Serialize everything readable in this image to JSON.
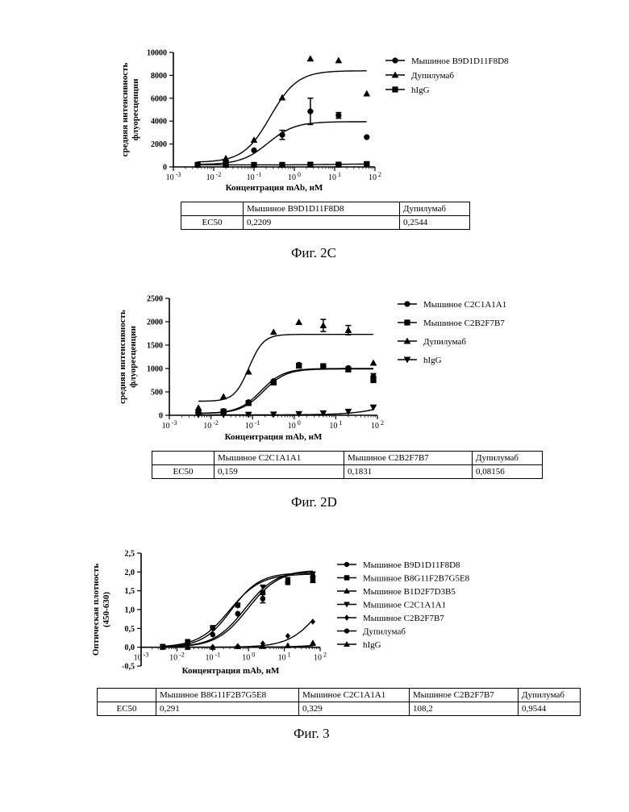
{
  "chart_data": [
    {
      "id": "fig2c",
      "type": "scatter",
      "caption": "Фиг. 2C",
      "xlabel": "Концентрация mAb, нМ",
      "ylabel": [
        "средняя интенсивность",
        "флуоресценции"
      ],
      "xscale": "log",
      "xlim": [
        -3,
        2
      ],
      "ylim": [
        0,
        10000
      ],
      "yticks": [
        "0",
        "2000",
        "4000",
        "6000",
        "8000",
        "10000"
      ],
      "ytick_values": [
        0,
        2000,
        4000,
        6000,
        8000,
        10000
      ],
      "legend_position": "top-right",
      "series": [
        {
          "name": "Мышиное B9D1D11F8D8",
          "marker": "circle",
          "x": [
            0.004,
            0.02,
            0.1,
            0.5,
            2.5,
            12.5,
            62.5
          ],
          "y": [
            200,
            400,
            1450,
            2800,
            4850,
            4500,
            2600
          ],
          "err": [
            0,
            0,
            0,
            400,
            1150,
            250,
            0
          ],
          "fit": {
            "bottom": 200,
            "top": 3950,
            "ec50": 0.2209,
            "hill": 1.3
          }
        },
        {
          "name": "Дупилумаб",
          "marker": "triangle",
          "x": [
            0.004,
            0.02,
            0.1,
            0.5,
            2.5,
            12.5,
            62.5
          ],
          "y": [
            200,
            750,
            2350,
            6050,
            9450,
            9300,
            6400
          ],
          "err": [
            0,
            0,
            0,
            0,
            0,
            0,
            0
          ],
          "fit": {
            "bottom": 400,
            "top": 8400,
            "ec50": 0.2544,
            "hill": 1.3
          }
        },
        {
          "name": "hIgG",
          "marker": "square",
          "x": [
            0.004,
            0.02,
            0.1,
            0.5,
            2.5,
            12.5,
            62.5
          ],
          "y": [
            180,
            180,
            180,
            180,
            200,
            200,
            250
          ],
          "err": [
            0,
            0,
            0,
            0,
            0,
            0,
            0
          ],
          "fit": {
            "bottom": 180,
            "top": 260,
            "ec50": 10,
            "hill": 1
          }
        }
      ],
      "table": {
        "header": [
          "",
          "Мышиное B9D1D11F8D8",
          "Дупилумаб"
        ],
        "rows": [
          [
            "EC50",
            "0,2209",
            "0,2544"
          ]
        ]
      }
    },
    {
      "id": "fig2d",
      "type": "scatter",
      "caption": "Фиг. 2D",
      "xlabel": "Концентрация mAb, нМ",
      "ylabel": [
        "средняя интенсивность",
        "флуоресценции"
      ],
      "xscale": "log",
      "xlim": [
        -3,
        2
      ],
      "ylim": [
        0,
        2500
      ],
      "yticks": [
        "0",
        "500",
        "1000",
        "1500",
        "2000",
        "2500"
      ],
      "ytick_values": [
        0,
        500,
        1000,
        1500,
        2000,
        2500
      ],
      "legend_position": "top-right",
      "series": [
        {
          "name": "Мышиное C2C1A1A1",
          "marker": "circle",
          "x": [
            0.005,
            0.02,
            0.08,
            0.32,
            1.3,
            5,
            20,
            80
          ],
          "y": [
            60,
            90,
            280,
            730,
            1080,
            1050,
            1010,
            830
          ],
          "err": [
            0,
            0,
            0,
            0,
            0,
            0,
            0,
            60
          ],
          "fit": {
            "bottom": 40,
            "top": 1000,
            "ec50": 0.159,
            "hill": 1.6
          }
        },
        {
          "name": "Мышиное C2B2F7B7",
          "marker": "square",
          "x": [
            0.005,
            0.02,
            0.08,
            0.32,
            1.3,
            5,
            20,
            80
          ],
          "y": [
            60,
            80,
            260,
            700,
            1060,
            1050,
            980,
            760
          ],
          "err": [
            0,
            0,
            0,
            0,
            0,
            0,
            0,
            60
          ],
          "fit": {
            "bottom": 40,
            "top": 990,
            "ec50": 0.1831,
            "hill": 1.6
          }
        },
        {
          "name": "Дупилумаб",
          "marker": "triangle",
          "x": [
            0.005,
            0.02,
            0.08,
            0.32,
            1.3,
            5,
            20,
            80
          ],
          "y": [
            160,
            400,
            930,
            1780,
            1990,
            1920,
            1820,
            1120
          ],
          "err": [
            0,
            0,
            0,
            0,
            0,
            130,
            100,
            0
          ],
          "fit": {
            "bottom": 300,
            "top": 1730,
            "ec50": 0.08156,
            "hill": 2.5
          }
        },
        {
          "name": "hIgG",
          "marker": "triangle-down",
          "x": [
            0.005,
            0.02,
            0.08,
            0.32,
            1.3,
            5,
            20,
            80
          ],
          "y": [
            10,
            10,
            15,
            20,
            30,
            45,
            80,
            170
          ],
          "err": [
            0,
            0,
            0,
            0,
            0,
            0,
            0,
            0
          ],
          "fit": {
            "bottom": 10,
            "top": 400,
            "ec50": 200,
            "hill": 1
          }
        }
      ],
      "table": {
        "header": [
          "",
          "Мышиное C2C1A1A1",
          "Мышиное C2B2F7B7",
          "Дупилумаб"
        ],
        "rows": [
          [
            "EC50",
            "0,159",
            "0,1831",
            "0,08156"
          ]
        ]
      }
    },
    {
      "id": "fig3",
      "type": "scatter",
      "caption": "Фиг. 3",
      "xlabel": "Концентрация mAb,  нМ",
      "ylabel": [
        "Оптическая плотность",
        "(450-630)"
      ],
      "xscale": "log",
      "xlim": [
        -3,
        2
      ],
      "ylim": [
        -0.5,
        2.5
      ],
      "yticks": [
        "-0,5",
        "0,0",
        "0,5",
        "1,0",
        "1,5",
        "2,0",
        "2,5"
      ],
      "ytick_values": [
        -0.5,
        0,
        0.5,
        1.0,
        1.5,
        2.0,
        2.5
      ],
      "legend_position": "top-right",
      "series": [
        {
          "name": "Мышиное B9D1D11F8D8",
          "marker": "circle",
          "x": [
            0.004,
            0.02,
            0.1,
            0.5,
            2.5,
            12.5,
            62.5
          ],
          "y": [
            0.02,
            0.1,
            0.33,
            0.88,
            1.3,
            1.78,
            1.85
          ],
          "err": [
            0,
            0,
            0,
            0,
            0.12,
            0,
            0
          ],
          "fit": {
            "bottom": 0,
            "top": 2.05,
            "ec50": 0.8,
            "hill": 1
          }
        },
        {
          "name": "Мышиное B8G11F2B7G5E8",
          "marker": "square",
          "x": [
            0.004,
            0.02,
            0.1,
            0.5,
            2.5,
            12.5,
            62.5
          ],
          "y": [
            0.02,
            0.15,
            0.52,
            1.12,
            1.45,
            1.72,
            1.8
          ],
          "err": [
            0,
            0,
            0,
            0,
            0,
            0,
            0.08
          ],
          "fit": {
            "bottom": 0,
            "top": 1.95,
            "ec50": 0.291,
            "hill": 1
          }
        },
        {
          "name": "Мышиное B1D2F7D3B5",
          "marker": "triangle",
          "x": [
            0.004,
            0.02,
            0.1,
            0.5,
            2.5,
            12.5,
            62.5
          ],
          "y": [
            0,
            0,
            0,
            0.02,
            0.03,
            0.05,
            0.1
          ],
          "err": [
            0,
            0,
            0,
            0,
            0,
            0,
            0
          ],
          "fit": {
            "bottom": 0,
            "top": 0.3,
            "ec50": 300,
            "hill": 1
          }
        },
        {
          "name": "Мышиное C2C1A1A1",
          "marker": "triangle-down",
          "x": [
            0.004,
            0.02,
            0.1,
            0.5,
            2.5,
            12.5,
            62.5
          ],
          "y": [
            0.01,
            0.12,
            0.5,
            1.1,
            1.6,
            1.8,
            1.95
          ],
          "err": [
            0,
            0,
            0,
            0,
            0,
            0,
            0
          ],
          "fit": {
            "bottom": 0,
            "top": 1.98,
            "ec50": 0.329,
            "hill": 1.1
          }
        },
        {
          "name": "Мышиное C2B2F7B7",
          "marker": "diamond",
          "x": [
            0.004,
            0.02,
            0.1,
            0.5,
            2.5,
            12.5,
            62.5
          ],
          "y": [
            0,
            0,
            0.01,
            0.03,
            0.1,
            0.3,
            0.68
          ],
          "err": [
            0,
            0,
            0,
            0,
            0,
            0,
            0
          ],
          "fit": {
            "bottom": 0,
            "top": 2.0,
            "ec50": 108.2,
            "hill": 1
          }
        },
        {
          "name": "Дупилумаб",
          "marker": "circle",
          "x": [
            0.004,
            0.02,
            0.1,
            0.5,
            2.5,
            12.5,
            62.5
          ],
          "y": [
            0.02,
            0.12,
            0.34,
            0.9,
            1.28,
            1.72,
            1.9
          ],
          "err": [
            0,
            0,
            0,
            0,
            0,
            0,
            0
          ],
          "fit": {
            "bottom": 0,
            "top": 2.05,
            "ec50": 0.9544,
            "hill": 1
          }
        },
        {
          "name": "hIgG",
          "marker": "triangle",
          "x": [
            0.004,
            0.02,
            0.1,
            0.5,
            2.5,
            12.5,
            62.5
          ],
          "y": [
            0,
            0,
            0,
            0.02,
            0.02,
            0.04,
            0.12
          ],
          "err": [
            0,
            0,
            0,
            0,
            0,
            0,
            0
          ],
          "fit": {
            "bottom": 0,
            "top": 0.3,
            "ec50": 400,
            "hill": 1
          }
        }
      ],
      "table": {
        "header": [
          "",
          "Мышиное B8G11F2B7G5E8",
          "Мышиное C2C1A1A1",
          "Мышиное C2B2F7B7",
          "Дупилумаб"
        ],
        "rows": [
          [
            "EC50",
            "0,291",
            "0,329",
            "108,2",
            "0,9544"
          ]
        ]
      }
    }
  ]
}
